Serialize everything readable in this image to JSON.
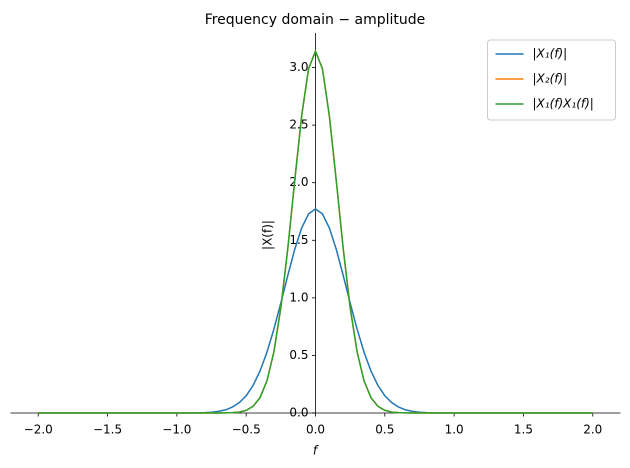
{
  "chart_data": {
    "type": "line",
    "title": "Frequency domain − amplitude",
    "xlabel": "f",
    "ylabel": "|X(f)|",
    "x": [
      -2,
      -1.5,
      -1,
      -0.95,
      -0.9,
      -0.85,
      -0.8,
      -0.75,
      -0.7,
      -0.65,
      -0.6,
      -0.55,
      -0.5,
      -0.45,
      -0.4,
      -0.35,
      -0.3,
      -0.25,
      -0.2,
      -0.15,
      -0.1,
      -0.05,
      0,
      0.05,
      0.1,
      0.15,
      0.2,
      0.25,
      0.3,
      0.35,
      0.4,
      0.45,
      0.5,
      0.55,
      0.6,
      0.65,
      0.7,
      0.75,
      0.8,
      0.85,
      0.9,
      0.95,
      1,
      1.5,
      2
    ],
    "series": [
      {
        "name": "|X₁(f)|",
        "color": "#1f77b4",
        "values": [
          0,
          0,
          0,
          0,
          0,
          0.001,
          0.003,
          0.007,
          0.014,
          0.027,
          0.051,
          0.09,
          0.15,
          0.24,
          0.365,
          0.529,
          0.729,
          0.956,
          1.194,
          1.42,
          1.606,
          1.729,
          1.772,
          1.729,
          1.606,
          1.42,
          1.194,
          0.956,
          0.729,
          0.529,
          0.365,
          0.24,
          0.15,
          0.09,
          0.051,
          0.027,
          0.014,
          0.007,
          0.003,
          0.001,
          0,
          0,
          0,
          0,
          0
        ]
      },
      {
        "name": "|X₂(f)|",
        "color": "#ff7f0e",
        "values": [
          0,
          0,
          0,
          0,
          0,
          0,
          0,
          0,
          0,
          0.001,
          0.003,
          0.008,
          0.023,
          0.058,
          0.134,
          0.28,
          0.532,
          0.915,
          1.426,
          2.015,
          2.579,
          2.99,
          3.142,
          2.99,
          2.579,
          2.015,
          1.426,
          0.915,
          0.532,
          0.28,
          0.134,
          0.058,
          0.023,
          0.008,
          0.003,
          0.001,
          0,
          0,
          0,
          0,
          0,
          0,
          0,
          0,
          0
        ]
      },
      {
        "name": "|X₁(f)X₁(f)|",
        "color": "#2ca02c",
        "values": [
          0,
          0,
          0,
          0,
          0,
          0,
          0,
          0,
          0,
          0.001,
          0.003,
          0.008,
          0.023,
          0.058,
          0.134,
          0.28,
          0.532,
          0.915,
          1.426,
          2.015,
          2.579,
          2.99,
          3.142,
          2.99,
          2.579,
          2.015,
          1.426,
          0.915,
          0.532,
          0.28,
          0.134,
          0.058,
          0.023,
          0.008,
          0.003,
          0.001,
          0,
          0,
          0,
          0,
          0,
          0,
          0,
          0,
          0
        ]
      }
    ],
    "xlim": [
      -2.2,
      2.2
    ],
    "ylim": [
      0,
      3.3
    ],
    "xticks": [
      {
        "value": -2,
        "label": "−2.0"
      },
      {
        "value": -1.5,
        "label": "−1.5"
      },
      {
        "value": -1,
        "label": "−1.0"
      },
      {
        "value": -0.5,
        "label": "−0.5"
      },
      {
        "value": 0,
        "label": "0.0"
      },
      {
        "value": 0.5,
        "label": "0.5"
      },
      {
        "value": 1,
        "label": "1.0"
      },
      {
        "value": 1.5,
        "label": "1.5"
      },
      {
        "value": 2,
        "label": "2.0"
      }
    ],
    "yticks": [
      {
        "value": 0,
        "label": "0.0"
      },
      {
        "value": 0.5,
        "label": "0.5"
      },
      {
        "value": 1,
        "label": "1.0"
      },
      {
        "value": 1.5,
        "label": "1.5"
      },
      {
        "value": 2,
        "label": "2.0"
      },
      {
        "value": 2.5,
        "label": "2.5"
      },
      {
        "value": 3,
        "label": "3.0"
      }
    ],
    "legend": "upper right"
  }
}
